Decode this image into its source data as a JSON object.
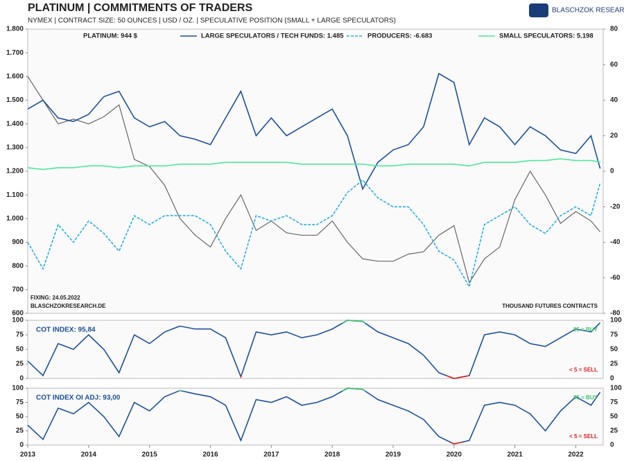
{
  "header": {
    "brand": "BLASCHZOK RESEARCH"
  },
  "chart_data": [
    {
      "type": "line",
      "title": "PLATINUM | COMMITMENTS OF TRADERS",
      "subtitle": "NYMEX  |  CONTRACT SIZE: 50 OUNCES  |  USD / OZ.  |  SPECULATIVE  POSITION (SMALL + LARGE SPECULATORS)",
      "annotations": [
        "FIXING: 24.05.2022",
        "BLASCHZOKRESEARCH.DE",
        "THOUSAND FUTURES CONTRACTS"
      ],
      "x": [
        2013,
        2013.25,
        2013.5,
        2013.75,
        2014,
        2014.25,
        2014.5,
        2014.75,
        2015,
        2015.25,
        2015.5,
        2015.75,
        2016,
        2016.25,
        2016.5,
        2016.75,
        2017,
        2017.25,
        2017.5,
        2017.75,
        2018,
        2018.25,
        2018.5,
        2018.75,
        2019,
        2019.25,
        2019.5,
        2019.75,
        2020,
        2020.25,
        2020.5,
        2020.75,
        2021,
        2021.25,
        2021.5,
        2021.75,
        2022,
        2022.25,
        2022.4
      ],
      "xlim": [
        2013,
        2022.45
      ],
      "ylim": [
        600,
        1800
      ],
      "yticks": [
        {
          "value": 600,
          "label": "600"
        },
        {
          "value": 700,
          "label": "700"
        },
        {
          "value": 800,
          "label": "800"
        },
        {
          "value": 900,
          "label": "900"
        },
        {
          "value": 1000,
          "label": "1.000"
        },
        {
          "value": 1100,
          "label": "1.100"
        },
        {
          "value": 1200,
          "label": "1.200"
        },
        {
          "value": 1300,
          "label": "1.300"
        },
        {
          "value": 1400,
          "label": "1.400"
        },
        {
          "value": 1500,
          "label": "1.500"
        },
        {
          "value": 1600,
          "label": "1.600"
        },
        {
          "value": 1700,
          "label": "1.700"
        },
        {
          "value": 1800,
          "label": "1.800"
        }
      ],
      "y2lim": [
        -80,
        80
      ],
      "y2ticks": [
        -80,
        -60,
        -40,
        -20,
        0,
        20,
        40,
        60,
        80
      ],
      "series": [
        {
          "name": "PLATINUM: 944 $",
          "color": "#666666",
          "axis": "y",
          "values": [
            1600,
            1500,
            1400,
            1420,
            1400,
            1430,
            1480,
            1250,
            1220,
            1140,
            1000,
            930,
            880,
            1000,
            1100,
            950,
            990,
            940,
            930,
            930,
            990,
            900,
            830,
            820,
            820,
            850,
            860,
            930,
            970,
            730,
            830,
            880,
            1080,
            1200,
            1100,
            980,
            1030,
            990,
            944
          ]
        },
        {
          "name": "LARGE SPECULATORS / TECH FUNDS: 1.485",
          "color": "#1a4fa0",
          "axis": "y2",
          "values": [
            35,
            40,
            30,
            28,
            32,
            42,
            45,
            30,
            25,
            28,
            20,
            18,
            15,
            30,
            45,
            20,
            30,
            20,
            25,
            30,
            35,
            20,
            -10,
            5,
            12,
            15,
            25,
            55,
            50,
            15,
            30,
            25,
            15,
            25,
            20,
            12,
            10,
            20,
            1.485
          ]
        },
        {
          "name": "PRODUCERS: -6.683",
          "color": "#22b0e0",
          "axis": "y2",
          "dashed": true,
          "values": [
            -40,
            -55,
            -30,
            -40,
            -28,
            -35,
            -45,
            -25,
            -30,
            -25,
            -25,
            -25,
            -30,
            -45,
            -55,
            -25,
            -28,
            -25,
            -30,
            -30,
            -25,
            -12,
            -5,
            -15,
            -20,
            -20,
            -30,
            -45,
            -50,
            -65,
            -30,
            -25,
            -20,
            -30,
            -35,
            -25,
            -20,
            -25,
            -6.683
          ]
        },
        {
          "name": "SMALL SPECULATORS: 5.198",
          "color": "#4de89a",
          "axis": "y2",
          "values": [
            2,
            1,
            2,
            2,
            3,
            3,
            2,
            3,
            3,
            3,
            4,
            4,
            4,
            5,
            5,
            5,
            5,
            5,
            4,
            4,
            4,
            4,
            4,
            3,
            3,
            4,
            4,
            4,
            4,
            3,
            5,
            5,
            5,
            6,
            6,
            7,
            6,
            6,
            5.198
          ]
        }
      ]
    },
    {
      "type": "line",
      "annotations": [
        "COT INDEX: 95,84"
      ],
      "x": [
        2013,
        2013.25,
        2013.5,
        2013.75,
        2014,
        2014.25,
        2014.5,
        2014.75,
        2015,
        2015.25,
        2015.5,
        2015.75,
        2016,
        2016.25,
        2016.5,
        2016.75,
        2017,
        2017.25,
        2017.5,
        2017.75,
        2018,
        2018.25,
        2018.5,
        2018.75,
        2019,
        2019.25,
        2019.5,
        2019.75,
        2020,
        2020.25,
        2020.5,
        2020.75,
        2021,
        2021.25,
        2021.5,
        2021.75,
        2022,
        2022.25,
        2022.4
      ],
      "xlim": [
        2013,
        2022.45
      ],
      "ylim": [
        0,
        100
      ],
      "yticks": [
        0,
        25,
        50,
        75,
        100
      ],
      "thresholds": [
        {
          "value": 95,
          "label": "95 = BUY",
          "color": "#3cc36a"
        },
        {
          "value": 5,
          "label": "< 5 = SELL",
          "color": "#e02020"
        }
      ],
      "series": [
        {
          "color": "#1a4fa0",
          "values": [
            30,
            5,
            60,
            50,
            75,
            50,
            10,
            75,
            60,
            80,
            90,
            85,
            85,
            70,
            3,
            80,
            75,
            80,
            70,
            75,
            85,
            100,
            98,
            80,
            70,
            60,
            40,
            10,
            0,
            5,
            75,
            80,
            75,
            60,
            55,
            70,
            85,
            80,
            95.84
          ]
        }
      ]
    },
    {
      "type": "line",
      "annotations": [
        "COT INDEX OI ADJ: 93,00"
      ],
      "x": [
        2013,
        2013.25,
        2013.5,
        2013.75,
        2014,
        2014.25,
        2014.5,
        2014.75,
        2015,
        2015.25,
        2015.5,
        2015.75,
        2016,
        2016.25,
        2016.5,
        2016.75,
        2017,
        2017.25,
        2017.5,
        2017.75,
        2018,
        2018.25,
        2018.5,
        2018.75,
        2019,
        2019.25,
        2019.5,
        2019.75,
        2020,
        2020.25,
        2020.5,
        2020.75,
        2021,
        2021.25,
        2021.5,
        2021.75,
        2022,
        2022.25,
        2022.4
      ],
      "xlim": [
        2013,
        2022.45
      ],
      "ylim": [
        0,
        100
      ],
      "yticks": [
        0,
        25,
        50,
        75,
        100
      ],
      "xticks": [
        2013,
        2014,
        2015,
        2016,
        2017,
        2018,
        2019,
        2020,
        2021,
        2022
      ],
      "thresholds": [
        {
          "value": 95,
          "label": "95 = BUY",
          "color": "#3cc36a"
        },
        {
          "value": 5,
          "label": "< 5 = SELL",
          "color": "#e02020"
        }
      ],
      "series": [
        {
          "color": "#1a4fa0",
          "values": [
            35,
            10,
            65,
            55,
            75,
            50,
            15,
            75,
            60,
            85,
            96,
            90,
            85,
            70,
            8,
            80,
            75,
            85,
            70,
            75,
            85,
            100,
            98,
            80,
            70,
            60,
            45,
            15,
            2,
            8,
            70,
            75,
            70,
            55,
            25,
            60,
            85,
            70,
            93
          ]
        }
      ]
    }
  ]
}
